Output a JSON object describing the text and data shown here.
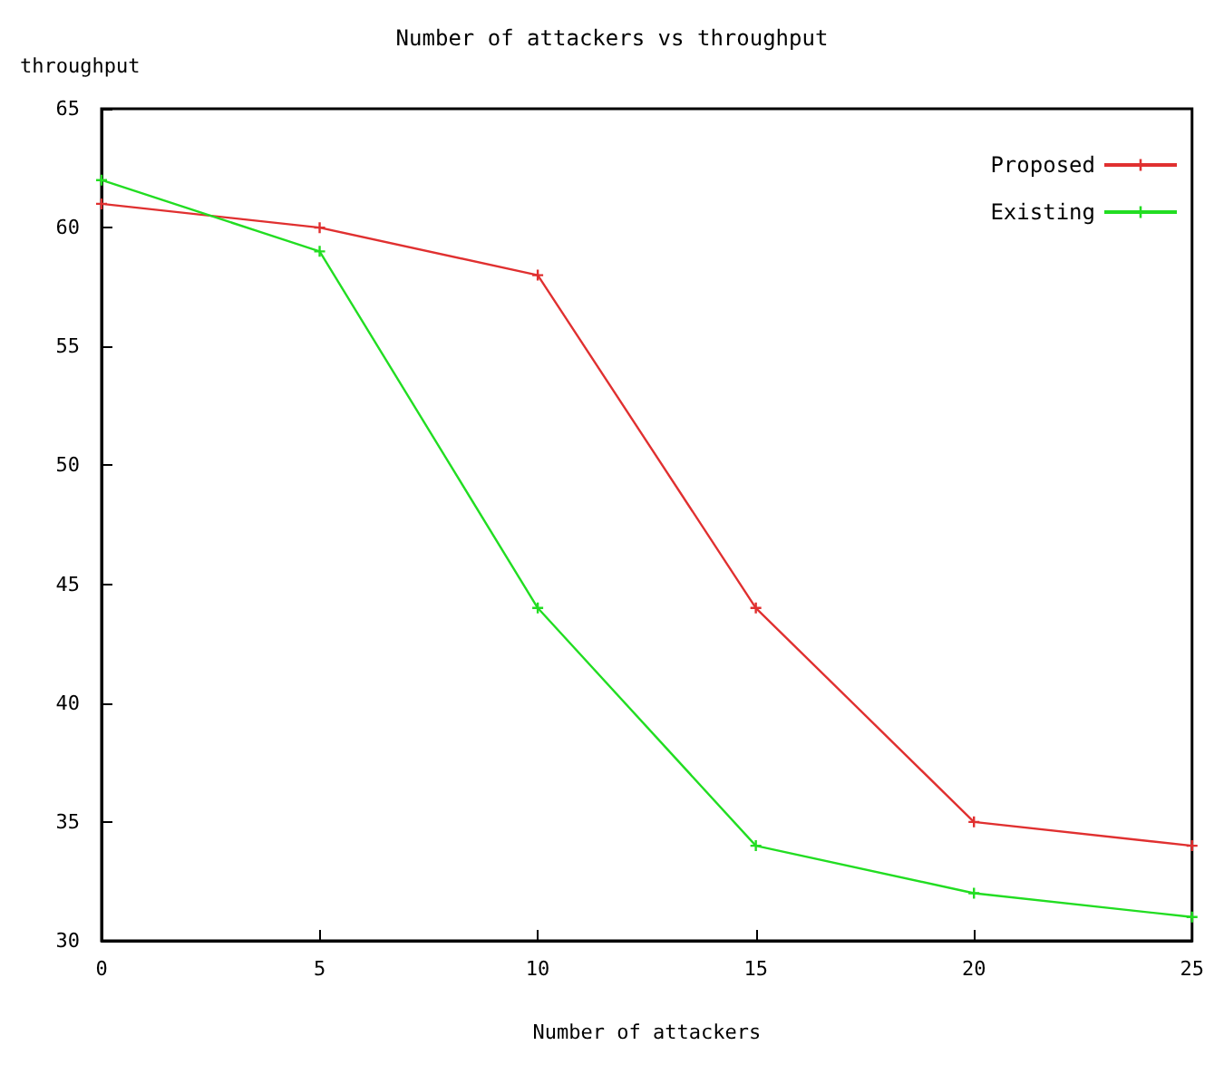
{
  "chart_data": {
    "type": "line",
    "title": "Number of attackers vs throughput",
    "xlabel": "Number of attackers",
    "ylabel": "throughput",
    "x": [
      0,
      5,
      10,
      15,
      20,
      25
    ],
    "series": [
      {
        "name": "Proposed",
        "color": "#e03030",
        "values": [
          61,
          60,
          58,
          44,
          35,
          34
        ]
      },
      {
        "name": "Existing",
        "color": "#22dd22",
        "values": [
          62,
          59,
          44,
          34,
          32,
          31
        ]
      }
    ],
    "xlim": [
      0,
      25
    ],
    "xticks": [
      0,
      5,
      10,
      15,
      20,
      25
    ],
    "ylim": [
      30,
      65
    ],
    "yticks": [
      30,
      35,
      40,
      45,
      50,
      55,
      60,
      65
    ],
    "grid": false,
    "legend": "top right",
    "marker": "cross",
    "line_style": "solid"
  }
}
